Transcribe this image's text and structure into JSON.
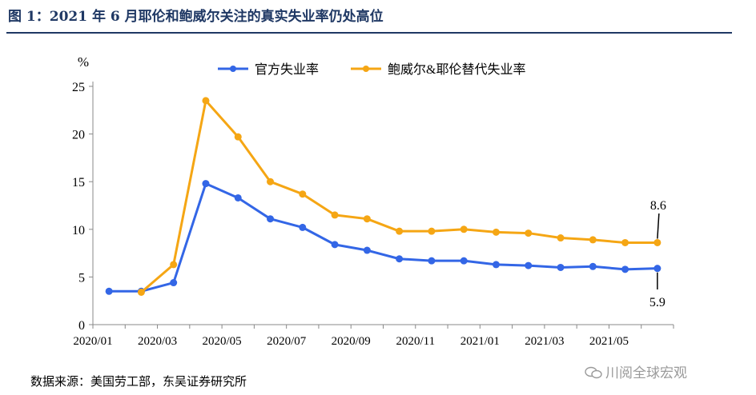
{
  "title": "图 1：2021 年 6 月耶伦和鲍威尔关注的真实失业率仍处高位",
  "source": "数据来源：美国劳工部，东吴证券研究所",
  "watermark": "川阅全球宏观",
  "colors": {
    "title": "#1f3864",
    "official": "#3366e6",
    "alt": "#f5a614"
  },
  "chart_data": {
    "type": "line",
    "ylabel": "%",
    "ylim": [
      0,
      25
    ],
    "yticks": [
      "0",
      "5",
      "10",
      "15",
      "20",
      "25"
    ],
    "xlim": [
      0,
      17
    ],
    "xtick_labels": [
      "2020/01",
      "2020/03",
      "2020/05",
      "2020/07",
      "2020/09",
      "2020/11",
      "2021/01",
      "2021/03",
      "2021/05"
    ],
    "grid": false,
    "legend_position": "top",
    "series": [
      {
        "name": "官方失业率",
        "color": "#3366e6",
        "x": [
          "2020/01",
          "2020/02",
          "2020/03",
          "2020/04",
          "2020/05",
          "2020/06",
          "2020/07",
          "2020/08",
          "2020/09",
          "2020/10",
          "2020/11",
          "2020/12",
          "2021/01",
          "2021/02",
          "2021/03",
          "2021/04",
          "2021/05",
          "2021/06"
        ],
        "values": [
          3.5,
          3.5,
          4.4,
          14.8,
          13.3,
          11.1,
          10.2,
          8.4,
          7.8,
          6.9,
          6.7,
          6.7,
          6.3,
          6.2,
          6.0,
          6.1,
          5.8,
          5.9
        ]
      },
      {
        "name": "鲍威尔&耶伦替代失业率",
        "color": "#f5a614",
        "x": [
          "2020/02",
          "2020/03",
          "2020/04",
          "2020/05",
          "2020/06",
          "2020/07",
          "2020/08",
          "2020/09",
          "2020/10",
          "2020/11",
          "2020/12",
          "2021/01",
          "2021/02",
          "2021/03",
          "2021/04",
          "2021/05",
          "2021/06"
        ],
        "values": [
          3.4,
          6.3,
          23.5,
          19.7,
          15.0,
          13.7,
          11.5,
          11.1,
          9.8,
          9.8,
          10.0,
          9.7,
          9.6,
          9.1,
          8.9,
          8.6,
          8.6
        ]
      }
    ],
    "annotations": [
      {
        "text": "8.6",
        "series": "鲍威尔&耶伦替代失业率",
        "x": "2021/06",
        "y": 8.6
      },
      {
        "text": "5.9",
        "series": "官方失业率",
        "x": "2021/06",
        "y": 5.9
      }
    ]
  }
}
